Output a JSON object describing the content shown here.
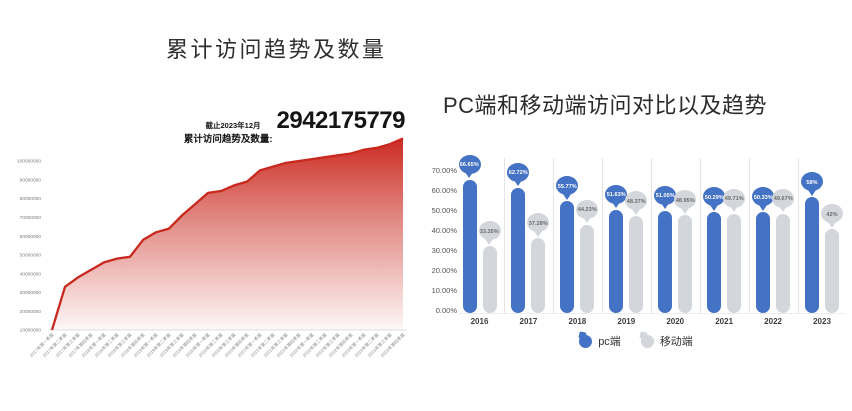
{
  "page": {
    "background": "#ffffff"
  },
  "left_chart": {
    "title": "累计访问趋势及数量",
    "annotation": {
      "note": "截止2023年12月",
      "label": "累计访问趋势及数量:",
      "value": "2942175779"
    }
  },
  "right_chart": {
    "title": "PC端和移动端访问对比以及趋势",
    "legend": [
      {
        "label": "pc端",
        "color": "#4472c4"
      },
      {
        "label": "移动端",
        "color": "#d3d6db"
      }
    ]
  },
  "chart_data": [
    {
      "type": "area",
      "title": "累计访问趋势及数量",
      "annotation_note": "截止2023年12月",
      "total_label": "累计访问趋势及数量:",
      "total_value": "2942175779",
      "categories": [
        "2017年第一季度",
        "2017年第二季度",
        "2017年第三季度",
        "2017年第四季度",
        "2018年第一季度",
        "2018年第二季度",
        "2018年第三季度",
        "2018年第四季度",
        "2019年第一季度",
        "2019年第二季度",
        "2019年第三季度",
        "2019年第四季度",
        "2020年第一季度",
        "2020年第二季度",
        "2020年第三季度",
        "2020年第四季度",
        "2021年第一季度",
        "2021年第二季度",
        "2021年第三季度",
        "2021年第四季度",
        "2022年第一季度",
        "2022年第二季度",
        "2022年第三季度",
        "2022年第四季度",
        "2023年第一季度",
        "2023年第二季度",
        "2023年第三季度",
        "2023年第四季度"
      ],
      "values": [
        10000000,
        33000000,
        38000000,
        42000000,
        46000000,
        48000000,
        49000000,
        58000000,
        62000000,
        64000000,
        71000000,
        77000000,
        83000000,
        84000000,
        87000000,
        89000000,
        95000000,
        97000000,
        99000000,
        100000000,
        101000000,
        102000000,
        103000000,
        104000000,
        106000000,
        107000000,
        109000000,
        112000000
      ],
      "yticks": [
        100000000,
        90000000,
        80000000,
        70000000,
        60000000,
        50000000,
        40000000,
        30000000,
        20000000,
        10000000
      ],
      "ylim": [
        10000000,
        115000000
      ],
      "line_color": "#c9281e",
      "fill_top_color": "#cb2a21",
      "grid": false
    },
    {
      "type": "bar",
      "title": "PC端和移动端访问对比以及趋势",
      "categories": [
        "2016",
        "2017",
        "2018",
        "2019",
        "2020",
        "2021",
        "2022",
        "2023"
      ],
      "series": [
        {
          "name": "pc端",
          "color": "#4472c4",
          "label_text_color": "#ffffff",
          "values": [
            66.65,
            62.72,
            55.77,
            51.63,
            51.05,
            50.29,
            50.33,
            58
          ],
          "labels": [
            "66.65%",
            "62.72%",
            "55.77%",
            "51.63%",
            "51.05%",
            "50.29%",
            "50.33%",
            "58%"
          ]
        },
        {
          "name": "移动端",
          "color": "#d3d6db",
          "label_text_color": "#6b6b6b",
          "values": [
            33.35,
            37.28,
            44.23,
            48.37,
            48.95,
            49.71,
            49.67,
            42
          ],
          "labels": [
            "33.35%",
            "37.28%",
            "44.23%",
            "48.37%",
            "48.95%",
            "49.71%",
            "49.67%",
            "42%"
          ]
        }
      ],
      "yticks": [
        "70.00%",
        "60.00%",
        "50.00%",
        "40.00%",
        "30.00%",
        "20.00%",
        "10.00%",
        "0.00%"
      ],
      "ylim": [
        0,
        70
      ],
      "legend_position": "bottom"
    }
  ]
}
